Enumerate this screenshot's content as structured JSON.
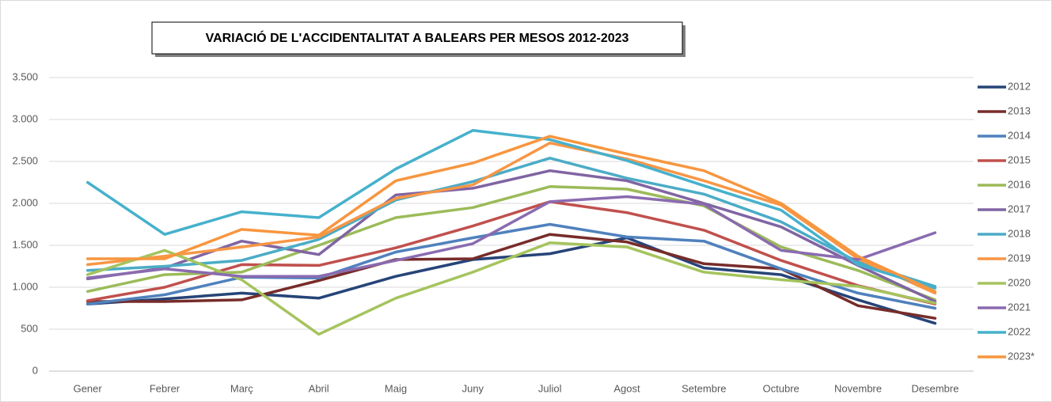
{
  "chart_data": {
    "type": "line",
    "title": "VARIACIÓ DE L'ACCIDENTALITAT A BALEARS PER MESOS 2012-2023",
    "categories": [
      "Gener",
      "Febrer",
      "Març",
      "Abril",
      "Maig",
      "Juny",
      "Juliol",
      "Agost",
      "Setembre",
      "Octubre",
      "Novembre",
      "Desembre"
    ],
    "ylim": [
      0,
      3500
    ],
    "yticks": [
      0,
      500,
      {
        "value": 1000,
        "label": "1.000"
      },
      {
        "value": 1500,
        "label": "1.500"
      },
      {
        "value": 2000,
        "label": "2.000"
      },
      {
        "value": 2500,
        "label": "2.500"
      },
      {
        "value": 3000,
        "label": "3.000"
      },
      {
        "value": 3500,
        "label": "3.500"
      }
    ],
    "grid": true,
    "legend": "right",
    "series": [
      {
        "name": "2012",
        "color": "#264478",
        "values": [
          800,
          860,
          930,
          870,
          1130,
          1330,
          1400,
          1590,
          1230,
          1150,
          850,
          570
        ]
      },
      {
        "name": "2013",
        "color": "#772c2a",
        "values": [
          830,
          830,
          850,
          1080,
          1330,
          1340,
          1630,
          1540,
          1280,
          1220,
          780,
          630
        ]
      },
      {
        "name": "2014",
        "color": "#4f81bd",
        "values": [
          800,
          910,
          1120,
          1110,
          1420,
          1590,
          1750,
          1600,
          1550,
          1220,
          930,
          750
        ]
      },
      {
        "name": "2015",
        "color": "#c0504d",
        "values": [
          840,
          1000,
          1270,
          1260,
          1470,
          1730,
          2020,
          1890,
          1680,
          1320,
          1020,
          800
        ]
      },
      {
        "name": "2016",
        "color": "#9bbb59",
        "values": [
          950,
          1150,
          1180,
          1500,
          1830,
          1950,
          2200,
          2170,
          1970,
          1480,
          1200,
          850
        ]
      },
      {
        "name": "2017",
        "color": "#8064a2",
        "values": [
          1100,
          1230,
          1550,
          1390,
          2100,
          2180,
          2390,
          2270,
          2000,
          1720,
          1260,
          830
        ]
      },
      {
        "name": "2018",
        "color": "#4bacc6",
        "values": [
          1200,
          1250,
          1320,
          1570,
          2040,
          2260,
          2540,
          2300,
          2110,
          1780,
          1300,
          1010
        ]
      },
      {
        "name": "2019",
        "color": "#f79646",
        "values": [
          1270,
          1370,
          1480,
          1600,
          2060,
          2220,
          2720,
          2530,
          2270,
          1980,
          1340,
          930
        ]
      },
      {
        "name": "2020",
        "color": "#a5c45e",
        "values": [
          1150,
          1440,
          1090,
          440,
          870,
          1180,
          1530,
          1480,
          1180,
          1090,
          1010,
          810
        ]
      },
      {
        "name": "2021",
        "color": "#8a6bb0",
        "values": [
          1110,
          1220,
          1130,
          1130,
          1320,
          1520,
          2020,
          2080,
          1990,
          1440,
          1330,
          1650
        ]
      },
      {
        "name": "2022",
        "color": "#46b1cc",
        "values": [
          2250,
          1630,
          1900,
          1830,
          2410,
          2870,
          2760,
          2510,
          2210,
          1920,
          1270,
          990
        ]
      },
      {
        "name": "2023*",
        "color": "#f7963f",
        "values": [
          1340,
          1340,
          1690,
          1620,
          2270,
          2480,
          2800,
          2590,
          2390,
          2000,
          1370,
          950
        ]
      }
    ]
  }
}
